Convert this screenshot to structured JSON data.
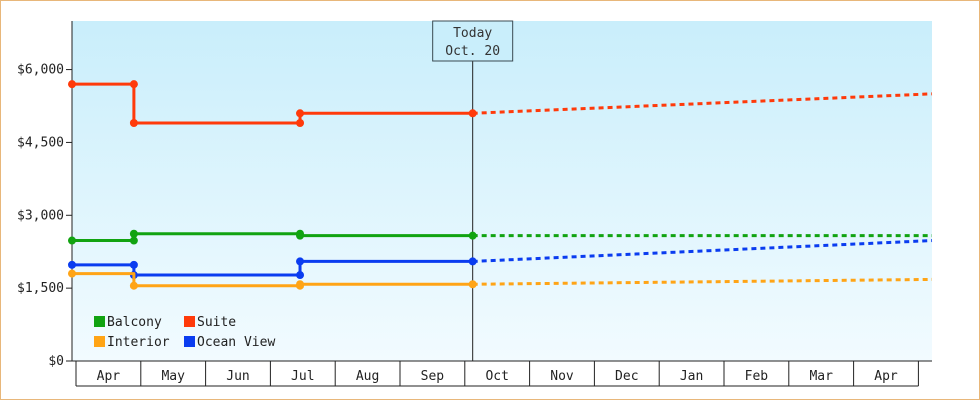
{
  "chart_data": {
    "type": "line",
    "title": "",
    "xlabel": "",
    "ylabel": "",
    "ylim": [
      0,
      7000
    ],
    "y_ticks": [
      {
        "value": 0,
        "label": "$0"
      },
      {
        "value": 1500,
        "label": "$1,500"
      },
      {
        "value": 3000,
        "label": "$3,000"
      },
      {
        "value": 4500,
        "label": "$4,500"
      },
      {
        "value": 6000,
        "label": "$6,000"
      }
    ],
    "months": [
      "Apr",
      "May",
      "Jun",
      "Jul",
      "Aug",
      "Sep",
      "Oct",
      "Nov",
      "Dec",
      "Jan",
      "Feb",
      "Mar",
      "Apr"
    ],
    "x_range_months": [
      0,
      13.2
    ],
    "today": {
      "line1": "Today",
      "line2": "Oct. 20",
      "x": 6.15
    },
    "grid": false,
    "legend_position": "bottom-left",
    "series": [
      {
        "name": "Suite",
        "color": "#ff3a0a",
        "actual": [
          [
            0.0,
            5700
          ],
          [
            0.95,
            5700
          ],
          [
            0.95,
            4900
          ],
          [
            3.5,
            4900
          ],
          [
            3.5,
            5100
          ],
          [
            6.15,
            5100
          ]
        ],
        "markers": [
          [
            0.0,
            5700
          ],
          [
            0.95,
            5700
          ],
          [
            0.95,
            4900
          ],
          [
            3.5,
            4900
          ],
          [
            3.5,
            5100
          ],
          [
            6.15,
            5100
          ]
        ],
        "forecast": [
          [
            6.15,
            5100
          ],
          [
            13.2,
            5500
          ]
        ]
      },
      {
        "name": "Balcony",
        "color": "#11a311",
        "actual": [
          [
            0.0,
            2480
          ],
          [
            0.95,
            2480
          ],
          [
            0.95,
            2620
          ],
          [
            3.5,
            2620
          ],
          [
            3.5,
            2580
          ],
          [
            6.15,
            2580
          ]
        ],
        "markers": [
          [
            0.0,
            2480
          ],
          [
            0.95,
            2480
          ],
          [
            0.95,
            2620
          ],
          [
            3.5,
            2620
          ],
          [
            3.5,
            2580
          ],
          [
            6.15,
            2580
          ]
        ],
        "forecast": [
          [
            6.15,
            2580
          ],
          [
            13.2,
            2580
          ]
        ]
      },
      {
        "name": "Ocean View",
        "color": "#0a3cf0",
        "actual": [
          [
            0.0,
            1980
          ],
          [
            0.95,
            1980
          ],
          [
            0.95,
            1770
          ],
          [
            3.5,
            1770
          ],
          [
            3.5,
            2050
          ],
          [
            6.15,
            2050
          ]
        ],
        "markers": [
          [
            0.0,
            1980
          ],
          [
            0.95,
            1980
          ],
          [
            0.95,
            1770
          ],
          [
            3.5,
            1770
          ],
          [
            3.5,
            2050
          ],
          [
            6.15,
            2050
          ]
        ],
        "forecast": [
          [
            6.15,
            2050
          ],
          [
            13.2,
            2480
          ]
        ]
      },
      {
        "name": "Interior",
        "color": "#ffa416",
        "actual": [
          [
            0.0,
            1800
          ],
          [
            0.95,
            1800
          ],
          [
            0.95,
            1550
          ],
          [
            3.5,
            1550
          ],
          [
            3.5,
            1580
          ],
          [
            6.15,
            1580
          ]
        ],
        "markers": [
          [
            0.0,
            1800
          ],
          [
            0.95,
            1550
          ],
          [
            3.5,
            1550
          ],
          [
            3.5,
            1580
          ],
          [
            6.15,
            1580
          ]
        ],
        "forecast": [
          [
            6.15,
            1580
          ],
          [
            13.2,
            1680
          ]
        ]
      }
    ],
    "legend_order": [
      "Balcony",
      "Suite",
      "Interior",
      "Ocean View"
    ]
  }
}
